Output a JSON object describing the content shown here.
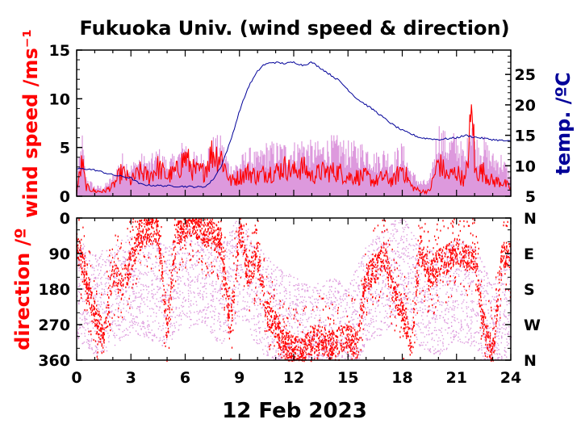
{
  "title": "Fukuoka Univ. (wind speed & direction)",
  "date_label": "12 Feb 2023",
  "colors": {
    "speed": "#ff0000",
    "gust": "#dd99dd",
    "temp": "#000099",
    "axis": "#000000"
  },
  "chart_data": [
    {
      "type": "line",
      "title": "Fukuoka Univ. (wind speed & direction)",
      "xlabel": "",
      "ylabel": "wind speed /ms⁻¹",
      "ylabel_right": "temp. /ºC",
      "xlim": [
        0,
        24
      ],
      "ylim": [
        0,
        15
      ],
      "ylim_right": [
        5,
        29
      ],
      "x_ticks": [
        0,
        3,
        6,
        9,
        12,
        15,
        18,
        21,
        24
      ],
      "y_ticks": [
        0,
        5,
        10,
        15
      ],
      "y_ticks_right": [
        5,
        10,
        15,
        20,
        25
      ],
      "series": [
        {
          "axis": "left",
          "color": "#ff0000",
          "x": [
            0,
            0.3,
            0.5,
            1,
            1.5,
            2,
            2.5,
            3,
            3.5,
            4,
            4.5,
            5,
            5.5,
            6,
            6.5,
            7,
            7.5,
            8,
            8.5,
            9,
            9.5,
            10,
            10.5,
            11,
            11.5,
            12,
            12.5,
            13,
            13.5,
            14,
            14.5,
            15,
            15.5,
            16,
            16.5,
            17,
            17.5,
            18,
            18.5,
            19,
            19.5,
            20,
            20.5,
            21,
            21.5,
            21.9,
            22,
            22.5,
            23,
            23.5,
            24
          ],
          "values": [
            0.5,
            3.5,
            1.0,
            0.5,
            0.5,
            1.0,
            2.5,
            1.5,
            2.5,
            2.0,
            3.0,
            2.0,
            2.5,
            4.0,
            2.5,
            2.5,
            4.5,
            4.0,
            1.5,
            2.0,
            2.5,
            2.0,
            2.5,
            2.5,
            3.0,
            2.5,
            3.0,
            2.0,
            2.5,
            2.5,
            2.5,
            2.0,
            2.0,
            2.0,
            1.5,
            2.0,
            1.5,
            3.0,
            1.0,
            0.5,
            0.5,
            3.5,
            2.0,
            2.5,
            1.5,
            9.5,
            2.5,
            2.5,
            1.5,
            1.5,
            0.8
          ]
        },
        {
          "axis": "left",
          "color": "#dd99dd",
          "x": [
            0,
            0.3,
            0.5,
            1,
            1.5,
            2,
            2.5,
            3,
            3.5,
            4,
            4.5,
            5,
            5.5,
            6,
            6.5,
            7,
            7.5,
            8,
            8.5,
            9,
            9.5,
            10,
            10.5,
            11,
            11.5,
            12,
            12.5,
            13,
            13.5,
            14,
            14.5,
            15,
            15.5,
            16,
            16.5,
            17,
            17.5,
            18,
            18.5,
            19,
            19.5,
            20,
            20.5,
            21,
            21.5,
            21.9,
            22,
            22.5,
            23,
            23.5,
            24
          ],
          "values": [
            1.5,
            6.0,
            2.0,
            1.0,
            1.0,
            2.0,
            4.0,
            3.0,
            4.0,
            3.5,
            4.5,
            3.5,
            4.0,
            5.5,
            4.0,
            4.0,
            5.5,
            5.5,
            3.0,
            3.5,
            4.5,
            4.0,
            5.0,
            5.0,
            5.0,
            5.0,
            5.5,
            5.0,
            5.0,
            5.5,
            5.5,
            5.0,
            5.0,
            5.0,
            4.0,
            4.5,
            4.0,
            5.0,
            2.5,
            1.5,
            1.5,
            7.0,
            5.5,
            6.0,
            4.0,
            9.5,
            5.5,
            5.5,
            4.0,
            4.0,
            2.0
          ]
        },
        {
          "axis": "right",
          "color": "#000099",
          "x": [
            0,
            0.5,
            1,
            2,
            3,
            3.5,
            4,
            5,
            6,
            7,
            7.3,
            7.6,
            8,
            8.5,
            9,
            9.5,
            10,
            10.3,
            10.8,
            11.5,
            12,
            12.5,
            13,
            13.5,
            14,
            14.5,
            15,
            15.5,
            16,
            16.5,
            17,
            17.5,
            18,
            18.5,
            19,
            20,
            21,
            21.5,
            22,
            23,
            24
          ],
          "values": [
            9.5,
            9.5,
            9.3,
            8.5,
            8.0,
            7.0,
            6.8,
            6.7,
            6.6,
            6.5,
            7.0,
            8.0,
            10.0,
            14.0,
            19.0,
            23.0,
            25.5,
            26.5,
            27.0,
            26.8,
            27.0,
            26.5,
            27.0,
            26.0,
            25.0,
            24.0,
            22.5,
            21.0,
            20.0,
            19.0,
            17.8,
            16.7,
            15.8,
            15.2,
            14.6,
            14.3,
            14.6,
            15.0,
            14.7,
            14.3,
            14.0
          ]
        }
      ]
    },
    {
      "type": "scatter",
      "xlabel": "",
      "ylabel": "direction /º",
      "xlim": [
        0,
        24
      ],
      "ylim": [
        360,
        0
      ],
      "x_ticks": [
        0,
        3,
        6,
        9,
        12,
        15,
        18,
        21,
        24
      ],
      "y_ticks": [
        0,
        90,
        180,
        270,
        360
      ],
      "y_labels_right": [
        "N",
        "E",
        "S",
        "W",
        "N"
      ],
      "series": [
        {
          "color": "#ff0000",
          "x": [
            0,
            0.5,
            1,
            1.5,
            2,
            2.5,
            3,
            3.5,
            4,
            4.5,
            5,
            5.5,
            6,
            6.5,
            7,
            7.5,
            8,
            8.5,
            9,
            9.5,
            10,
            10.5,
            11,
            11.5,
            12,
            12.5,
            13,
            13.5,
            14,
            14.5,
            15,
            15.5,
            16,
            16.5,
            17,
            17.5,
            18,
            18.5,
            19,
            19.5,
            20,
            20.5,
            21,
            21.5,
            22,
            22.5,
            23,
            23.5,
            24
          ],
          "values": [
            60,
            150,
            240,
            300,
            130,
            170,
            110,
            40,
            20,
            30,
            280,
            40,
            15,
            10,
            30,
            40,
            60,
            280,
            30,
            140,
            90,
            240,
            270,
            320,
            330,
            340,
            310,
            300,
            320,
            310,
            300,
            320,
            150,
            130,
            90,
            180,
            230,
            330,
            70,
            150,
            110,
            100,
            80,
            100,
            90,
            270,
            340,
            100,
            90
          ]
        },
        {
          "color": "#dd99dd",
          "x": [
            0,
            1,
            2,
            3,
            4,
            5,
            6,
            7,
            8,
            9,
            10,
            11,
            12,
            13,
            14,
            15,
            16,
            17,
            18,
            19,
            20,
            21,
            22,
            23,
            24
          ],
          "values": [
            180,
            220,
            200,
            160,
            180,
            200,
            150,
            140,
            200,
            120,
            200,
            250,
            280,
            300,
            280,
            300,
            200,
            160,
            120,
            200,
            220,
            180,
            200,
            300,
            200
          ]
        }
      ]
    }
  ]
}
